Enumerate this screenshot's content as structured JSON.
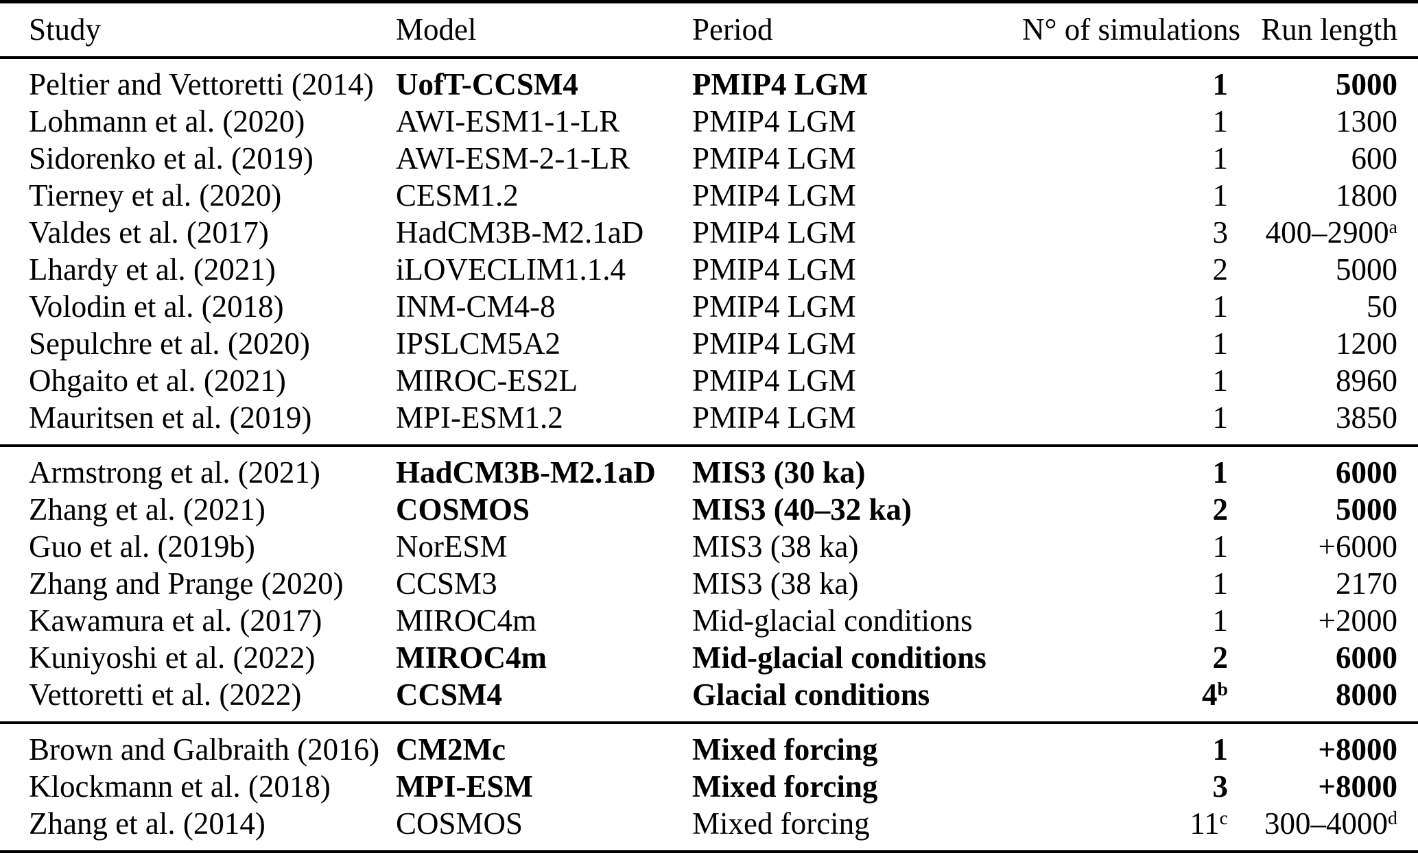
{
  "table": {
    "columns": [
      {
        "key": "study",
        "label": "Study",
        "align": "left"
      },
      {
        "key": "model",
        "label": "Model",
        "align": "left"
      },
      {
        "key": "period",
        "label": "Period",
        "align": "left"
      },
      {
        "key": "n_sims",
        "label": "N° of simulations",
        "align": "right"
      },
      {
        "key": "run_length",
        "label": "Run length",
        "align": "right"
      }
    ],
    "sections": [
      {
        "name": "pmip4-lgm",
        "rows": [
          {
            "study": "Peltier and Vettoretti (2014)",
            "model": "UofT-CCSM4",
            "period": "PMIP4 LGM",
            "n_sims": "1",
            "run_length": "5000",
            "highlight": true
          },
          {
            "study": "Lohmann et al. (2020)",
            "model": "AWI-ESM1-1-LR",
            "period": "PMIP4 LGM",
            "n_sims": "1",
            "run_length": "1300",
            "highlight": false
          },
          {
            "study": "Sidorenko et al. (2019)",
            "model": "AWI-ESM-2-1-LR",
            "period": "PMIP4 LGM",
            "n_sims": "1",
            "run_length": "600",
            "highlight": false
          },
          {
            "study": "Tierney et al. (2020)",
            "model": "CESM1.2",
            "period": "PMIP4 LGM",
            "n_sims": "1",
            "run_length": "1800",
            "highlight": false
          },
          {
            "study": "Valdes et al. (2017)",
            "model": "HadCM3B-M2.1aD",
            "period": "PMIP4 LGM",
            "n_sims": "3",
            "run_length": "400–2900^a",
            "highlight": false
          },
          {
            "study": "Lhardy et al. (2021)",
            "model": "iLOVECLIM1.1.4",
            "period": "PMIP4 LGM",
            "n_sims": "2",
            "run_length": "5000",
            "highlight": false
          },
          {
            "study": "Volodin et al. (2018)",
            "model": "INM-CM4-8",
            "period": "PMIP4 LGM",
            "n_sims": "1",
            "run_length": "50",
            "highlight": false
          },
          {
            "study": "Sepulchre et al. (2020)",
            "model": "IPSLCM5A2",
            "period": "PMIP4 LGM",
            "n_sims": "1",
            "run_length": "1200",
            "highlight": false
          },
          {
            "study": "Ohgaito et al. (2021)",
            "model": "MIROC-ES2L",
            "period": "PMIP4 LGM",
            "n_sims": "1",
            "run_length": "8960",
            "highlight": false
          },
          {
            "study": "Mauritsen et al. (2019)",
            "model": "MPI-ESM1.2",
            "period": "PMIP4 LGM",
            "n_sims": "1",
            "run_length": "3850",
            "highlight": false
          }
        ]
      },
      {
        "name": "mis3-glacial",
        "rows": [
          {
            "study": "Armstrong et al. (2021)",
            "model": "HadCM3B-M2.1aD",
            "period": "MIS3 (30 ka)",
            "n_sims": "1",
            "run_length": "6000",
            "highlight": true
          },
          {
            "study": "Zhang et al. (2021)",
            "model": "COSMOS",
            "period": "MIS3 (40–32 ka)",
            "n_sims": "2",
            "run_length": "5000",
            "highlight": true
          },
          {
            "study": "Guo et al. (2019b)",
            "model": "NorESM",
            "period": "MIS3 (38 ka)",
            "n_sims": "1",
            "run_length": "+6000",
            "highlight": false
          },
          {
            "study": "Zhang and Prange (2020)",
            "model": "CCSM3",
            "period": "MIS3 (38 ka)",
            "n_sims": "1",
            "run_length": "2170",
            "highlight": false
          },
          {
            "study": "Kawamura et al. (2017)",
            "model": "MIROC4m",
            "period": "Mid-glacial conditions",
            "n_sims": "1",
            "run_length": "+2000",
            "highlight": false
          },
          {
            "study": "Kuniyoshi et al. (2022)",
            "model": "MIROC4m",
            "period": "Mid-glacial conditions",
            "n_sims": "2",
            "run_length": "6000",
            "highlight": true
          },
          {
            "study": "Vettoretti et al. (2022)",
            "model": "CCSM4",
            "period": "Glacial conditions",
            "n_sims": "4^b",
            "run_length": "8000",
            "highlight": true
          }
        ]
      },
      {
        "name": "mixed-forcing",
        "rows": [
          {
            "study": "Brown and Galbraith (2016)",
            "model": "CM2Mc",
            "period": "Mixed forcing",
            "n_sims": "1",
            "run_length": "+8000",
            "highlight": true
          },
          {
            "study": "Klockmann et al. (2018)",
            "model": "MPI-ESM",
            "period": "Mixed forcing",
            "n_sims": "3",
            "run_length": "+8000",
            "highlight": true
          },
          {
            "study": "Zhang et al. (2014)",
            "model": "COSMOS",
            "period": "Mixed forcing",
            "n_sims": "11^c",
            "run_length": "300–4000^d",
            "highlight": false
          }
        ]
      }
    ]
  }
}
